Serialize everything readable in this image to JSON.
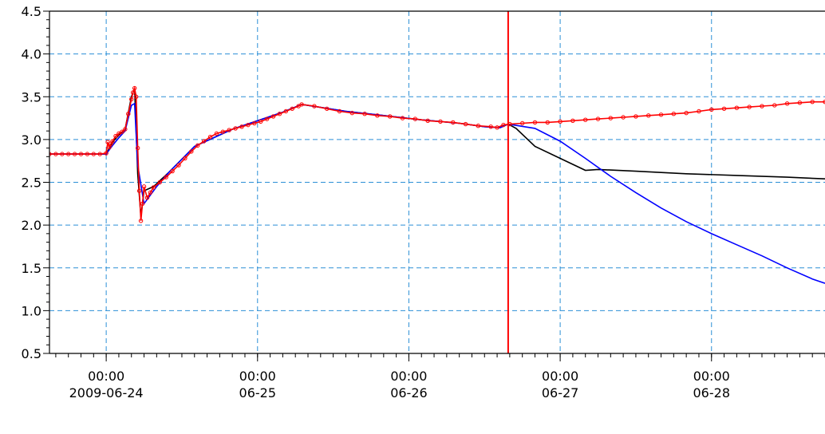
{
  "chart_data": {
    "type": "line",
    "title": "",
    "xlabel": "",
    "ylabel": "",
    "ylim": [
      0.5,
      4.5
    ],
    "xlim": [
      "2009-06-23T15:00",
      "2009-06-28T18:00"
    ],
    "yticks": [
      "0.5",
      "1.0",
      "1.5",
      "2.0",
      "2.5",
      "3.0",
      "3.5",
      "4.0",
      "4.5"
    ],
    "xticks": [
      {
        "x": "2009-06-24T00:00",
        "time": "00:00",
        "date": "2009-06-24"
      },
      {
        "x": "2009-06-25T00:00",
        "time": "00:00",
        "date": "06-25"
      },
      {
        "x": "2009-06-26T00:00",
        "time": "00:00",
        "date": "06-26"
      },
      {
        "x": "2009-06-27T00:00",
        "time": "00:00",
        "date": "06-27"
      },
      {
        "x": "2009-06-28T00:00",
        "time": "00:00",
        "date": "06-28"
      }
    ],
    "grid": true,
    "vertical_marker": {
      "x": "2009-06-26T15:45",
      "color": "#ff0000"
    },
    "series": [
      {
        "color": "#000000",
        "marker": "none",
        "points": [
          [
            "2009-06-23T15:00",
            2.83
          ],
          [
            "2009-06-24T00:00",
            2.83
          ],
          [
            "2009-06-24T01:00",
            2.97
          ],
          [
            "2009-06-24T02:00",
            3.05
          ],
          [
            "2009-06-24T03:00",
            3.12
          ],
          [
            "2009-06-24T04:00",
            3.5
          ],
          [
            "2009-06-24T04:30",
            3.6
          ],
          [
            "2009-06-24T05:00",
            2.6
          ],
          [
            "2009-06-24T05:30",
            2.1
          ],
          [
            "2009-06-24T06:00",
            2.4
          ],
          [
            "2009-06-24T07:30",
            2.45
          ],
          [
            "2009-06-24T10:00",
            2.62
          ],
          [
            "2009-06-24T14:00",
            2.92
          ],
          [
            "2009-06-24T20:00",
            3.12
          ],
          [
            "2009-06-25T04:00",
            3.32
          ],
          [
            "2009-06-25T07:00",
            3.41
          ],
          [
            "2009-06-25T14:00",
            3.33
          ],
          [
            "2009-06-25T20:00",
            3.28
          ],
          [
            "2009-06-26T02:00",
            3.23
          ],
          [
            "2009-06-26T08:00",
            3.19
          ],
          [
            "2009-06-26T12:00",
            3.15
          ],
          [
            "2009-06-26T14:30",
            3.14
          ],
          [
            "2009-06-26T15:45",
            3.18
          ],
          [
            "2009-06-26T17:00",
            3.13
          ],
          [
            "2009-06-26T20:00",
            2.92
          ],
          [
            "2009-06-27T00:00",
            2.78
          ],
          [
            "2009-06-27T04:00",
            2.64
          ],
          [
            "2009-06-27T06:00",
            2.65
          ],
          [
            "2009-06-27T12:00",
            2.63
          ],
          [
            "2009-06-27T20:00",
            2.6
          ],
          [
            "2009-06-28T04:00",
            2.58
          ],
          [
            "2009-06-28T12:00",
            2.56
          ],
          [
            "2009-06-28T18:00",
            2.54
          ]
        ]
      },
      {
        "color": "#0000ff",
        "marker": "none",
        "points": [
          [
            "2009-06-23T15:00",
            2.83
          ],
          [
            "2009-06-24T00:00",
            2.83
          ],
          [
            "2009-06-24T01:00",
            2.93
          ],
          [
            "2009-06-24T02:00",
            3.02
          ],
          [
            "2009-06-24T03:00",
            3.1
          ],
          [
            "2009-06-24T04:00",
            3.4
          ],
          [
            "2009-06-24T04:30",
            3.42
          ],
          [
            "2009-06-24T05:00",
            2.7
          ],
          [
            "2009-06-24T06:00",
            2.25
          ],
          [
            "2009-06-24T07:00",
            2.35
          ],
          [
            "2009-06-24T08:00",
            2.45
          ],
          [
            "2009-06-24T10:00",
            2.62
          ],
          [
            "2009-06-24T14:00",
            2.92
          ],
          [
            "2009-06-24T20:00",
            3.12
          ],
          [
            "2009-06-25T04:00",
            3.32
          ],
          [
            "2009-06-25T07:00",
            3.41
          ],
          [
            "2009-06-25T14:00",
            3.33
          ],
          [
            "2009-06-25T20:00",
            3.28
          ],
          [
            "2009-06-26T02:00",
            3.23
          ],
          [
            "2009-06-26T08:00",
            3.19
          ],
          [
            "2009-06-26T12:00",
            3.15
          ],
          [
            "2009-06-26T14:30",
            3.14
          ],
          [
            "2009-06-26T15:45",
            3.18
          ],
          [
            "2009-06-26T20:00",
            3.13
          ],
          [
            "2009-06-27T00:00",
            2.98
          ],
          [
            "2009-06-27T04:00",
            2.78
          ],
          [
            "2009-06-27T08:00",
            2.57
          ],
          [
            "2009-06-27T12:00",
            2.38
          ],
          [
            "2009-06-27T16:00",
            2.2
          ],
          [
            "2009-06-27T20:00",
            2.04
          ],
          [
            "2009-06-28T00:00",
            1.9
          ],
          [
            "2009-06-28T04:00",
            1.77
          ],
          [
            "2009-06-28T08:00",
            1.64
          ],
          [
            "2009-06-28T12:00",
            1.5
          ],
          [
            "2009-06-28T16:00",
            1.37
          ],
          [
            "2009-06-28T18:00",
            1.32
          ]
        ]
      },
      {
        "color": "#ff0000",
        "marker": "circle",
        "points": [
          [
            "2009-06-23T15:00",
            2.83
          ],
          [
            "2009-06-23T16:00",
            2.83
          ],
          [
            "2009-06-23T17:00",
            2.83
          ],
          [
            "2009-06-23T18:00",
            2.83
          ],
          [
            "2009-06-23T19:00",
            2.83
          ],
          [
            "2009-06-23T20:00",
            2.83
          ],
          [
            "2009-06-23T21:00",
            2.83
          ],
          [
            "2009-06-23T22:00",
            2.83
          ],
          [
            "2009-06-23T23:00",
            2.83
          ],
          [
            "2009-06-24T00:00",
            2.84
          ],
          [
            "2009-06-24T00:15",
            2.97
          ],
          [
            "2009-06-24T00:30",
            2.91
          ],
          [
            "2009-06-24T00:45",
            2.95
          ],
          [
            "2009-06-24T01:00",
            2.98
          ],
          [
            "2009-06-24T01:30",
            3.04
          ],
          [
            "2009-06-24T02:00",
            3.07
          ],
          [
            "2009-06-24T02:30",
            3.09
          ],
          [
            "2009-06-24T03:00",
            3.12
          ],
          [
            "2009-06-24T03:30",
            3.3
          ],
          [
            "2009-06-24T04:00",
            3.47
          ],
          [
            "2009-06-24T04:15",
            3.55
          ],
          [
            "2009-06-24T04:30",
            3.6
          ],
          [
            "2009-06-24T04:45",
            3.5
          ],
          [
            "2009-06-24T05:00",
            2.9
          ],
          [
            "2009-06-24T05:15",
            2.4
          ],
          [
            "2009-06-24T05:30",
            2.05
          ],
          [
            "2009-06-24T05:45",
            2.25
          ],
          [
            "2009-06-24T06:00",
            2.45
          ],
          [
            "2009-06-24T06:30",
            2.32
          ],
          [
            "2009-06-24T07:00",
            2.38
          ],
          [
            "2009-06-24T07:30",
            2.44
          ],
          [
            "2009-06-24T08:30",
            2.5
          ],
          [
            "2009-06-24T09:30",
            2.56
          ],
          [
            "2009-06-24T10:30",
            2.63
          ],
          [
            "2009-06-24T11:30",
            2.7
          ],
          [
            "2009-06-24T12:30",
            2.78
          ],
          [
            "2009-06-24T13:30",
            2.86
          ],
          [
            "2009-06-24T14:30",
            2.93
          ],
          [
            "2009-06-24T15:30",
            2.98
          ],
          [
            "2009-06-24T16:30",
            3.03
          ],
          [
            "2009-06-24T17:30",
            3.07
          ],
          [
            "2009-06-24T18:30",
            3.09
          ],
          [
            "2009-06-24T19:30",
            3.11
          ],
          [
            "2009-06-24T20:30",
            3.13
          ],
          [
            "2009-06-24T21:30",
            3.15
          ],
          [
            "2009-06-24T22:30",
            3.17
          ],
          [
            "2009-06-24T23:30",
            3.19
          ],
          [
            "2009-06-25T00:30",
            3.21
          ],
          [
            "2009-06-25T01:30",
            3.24
          ],
          [
            "2009-06-25T02:30",
            3.27
          ],
          [
            "2009-06-25T03:30",
            3.3
          ],
          [
            "2009-06-25T04:30",
            3.33
          ],
          [
            "2009-06-25T05:30",
            3.36
          ],
          [
            "2009-06-25T06:30",
            3.39
          ],
          [
            "2009-06-25T07:00",
            3.41
          ],
          [
            "2009-06-25T09:00",
            3.39
          ],
          [
            "2009-06-25T11:00",
            3.36
          ],
          [
            "2009-06-25T13:00",
            3.33
          ],
          [
            "2009-06-25T15:00",
            3.31
          ],
          [
            "2009-06-25T17:00",
            3.3
          ],
          [
            "2009-06-25T19:00",
            3.28
          ],
          [
            "2009-06-25T21:00",
            3.27
          ],
          [
            "2009-06-25T23:00",
            3.25
          ],
          [
            "2009-06-26T01:00",
            3.24
          ],
          [
            "2009-06-26T03:00",
            3.22
          ],
          [
            "2009-06-26T05:00",
            3.21
          ],
          [
            "2009-06-26T07:00",
            3.2
          ],
          [
            "2009-06-26T09:00",
            3.18
          ],
          [
            "2009-06-26T11:00",
            3.16
          ],
          [
            "2009-06-26T13:00",
            3.15
          ],
          [
            "2009-06-26T14:00",
            3.14
          ],
          [
            "2009-06-26T15:00",
            3.17
          ],
          [
            "2009-06-26T16:00",
            3.18
          ],
          [
            "2009-06-26T18:00",
            3.19
          ],
          [
            "2009-06-26T20:00",
            3.2
          ],
          [
            "2009-06-26T22:00",
            3.2
          ],
          [
            "2009-06-27T00:00",
            3.21
          ],
          [
            "2009-06-27T02:00",
            3.22
          ],
          [
            "2009-06-27T04:00",
            3.23
          ],
          [
            "2009-06-27T06:00",
            3.24
          ],
          [
            "2009-06-27T08:00",
            3.25
          ],
          [
            "2009-06-27T10:00",
            3.26
          ],
          [
            "2009-06-27T12:00",
            3.27
          ],
          [
            "2009-06-27T14:00",
            3.28
          ],
          [
            "2009-06-27T16:00",
            3.29
          ],
          [
            "2009-06-27T18:00",
            3.3
          ],
          [
            "2009-06-27T20:00",
            3.31
          ],
          [
            "2009-06-27T22:00",
            3.33
          ],
          [
            "2009-06-28T00:00",
            3.35
          ],
          [
            "2009-06-28T02:00",
            3.36
          ],
          [
            "2009-06-28T04:00",
            3.37
          ],
          [
            "2009-06-28T06:00",
            3.38
          ],
          [
            "2009-06-28T08:00",
            3.39
          ],
          [
            "2009-06-28T10:00",
            3.4
          ],
          [
            "2009-06-28T12:00",
            3.42
          ],
          [
            "2009-06-28T14:00",
            3.43
          ],
          [
            "2009-06-28T16:00",
            3.44
          ],
          [
            "2009-06-28T18:00",
            3.44
          ]
        ]
      }
    ]
  }
}
